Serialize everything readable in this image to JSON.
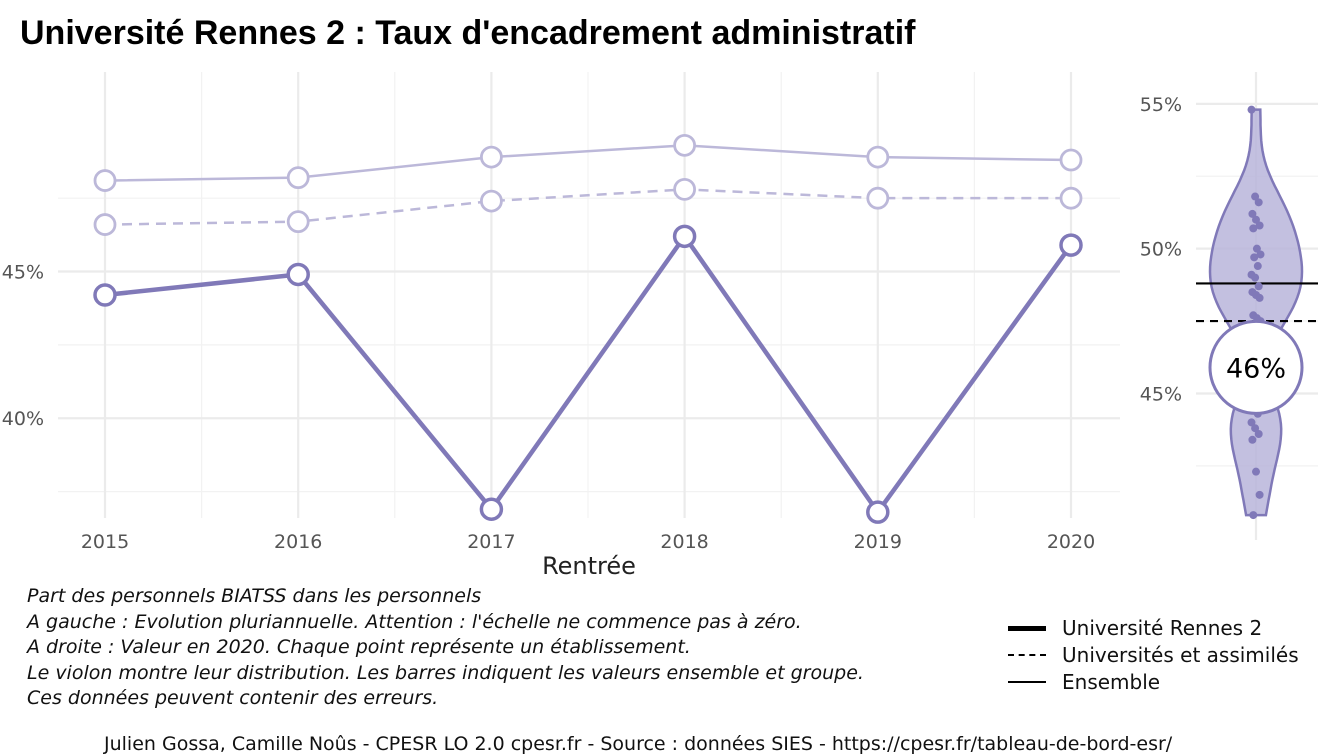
{
  "title": "Université Rennes 2  :  Taux d'encadrement administratif",
  "caption_lines": [
    "Part des personnels BIATSS dans les personnels",
    "A gauche : Evolution pluriannuelle. Attention : l'échelle ne commence pas à zéro.",
    "A droite : Valeur en 2020. Chaque point représente un établissement.",
    "Le violon montre leur distribution. Les barres indiquent les valeurs ensemble et groupe.",
    "Ces données peuvent contenir des erreurs."
  ],
  "legend": {
    "items": [
      {
        "label": "Université Rennes 2",
        "style": "thick"
      },
      {
        "label": "Universités et assimilés",
        "style": "dashed"
      },
      {
        "label": "Ensemble",
        "style": "thin"
      }
    ]
  },
  "source": "Julien Gossa, Camille Noûs - CPESR LO 2.0 cpesr.fr - Source : données SIES - https://cpesr.fr/tableau-de-bord-esr/",
  "colors": {
    "main": "#8079b8",
    "light": "#bcb8d9",
    "fill": "#b9b5db",
    "grid": "#ebebeb"
  },
  "chart_data": [
    {
      "type": "line",
      "xlabel": "Rentrée",
      "ylabel": "",
      "x": [
        2015,
        2016,
        2017,
        2018,
        2019,
        2020
      ],
      "ylim": [
        36.6,
        51.8
      ],
      "yticks": [
        40,
        45
      ],
      "ytick_labels": [
        "40%",
        "45%"
      ],
      "grid": true,
      "series": [
        {
          "name": "Université Rennes 2",
          "style": "thick",
          "values": [
            44.2,
            44.9,
            36.9,
            46.2,
            36.8,
            45.9
          ]
        },
        {
          "name": "Universités et assimilés",
          "style": "dashed",
          "values": [
            46.6,
            46.7,
            47.4,
            47.8,
            47.5,
            47.5
          ]
        },
        {
          "name": "Ensemble",
          "style": "thin",
          "values": [
            48.1,
            48.2,
            48.9,
            49.3,
            48.9,
            48.8
          ]
        }
      ]
    },
    {
      "type": "scatter",
      "description": "violin",
      "ylim": [
        40.7,
        56.1
      ],
      "yticks": [
        45,
        50,
        55
      ],
      "ytick_labels": [
        "45%",
        "50%",
        "55%"
      ],
      "value_label": "46%",
      "value": 45.9,
      "ensemble": 48.8,
      "universites": 47.5,
      "points": [
        54.8,
        51.8,
        51.6,
        51.2,
        51.0,
        50.8,
        50.7,
        50.0,
        49.8,
        49.7,
        49.4,
        49.1,
        49.0,
        48.7,
        48.5,
        48.4,
        48.3,
        47.7,
        47.6,
        47.5,
        44.5,
        44.3,
        44.0,
        43.8,
        43.6,
        43.4,
        42.3,
        41.5,
        40.8
      ]
    }
  ]
}
